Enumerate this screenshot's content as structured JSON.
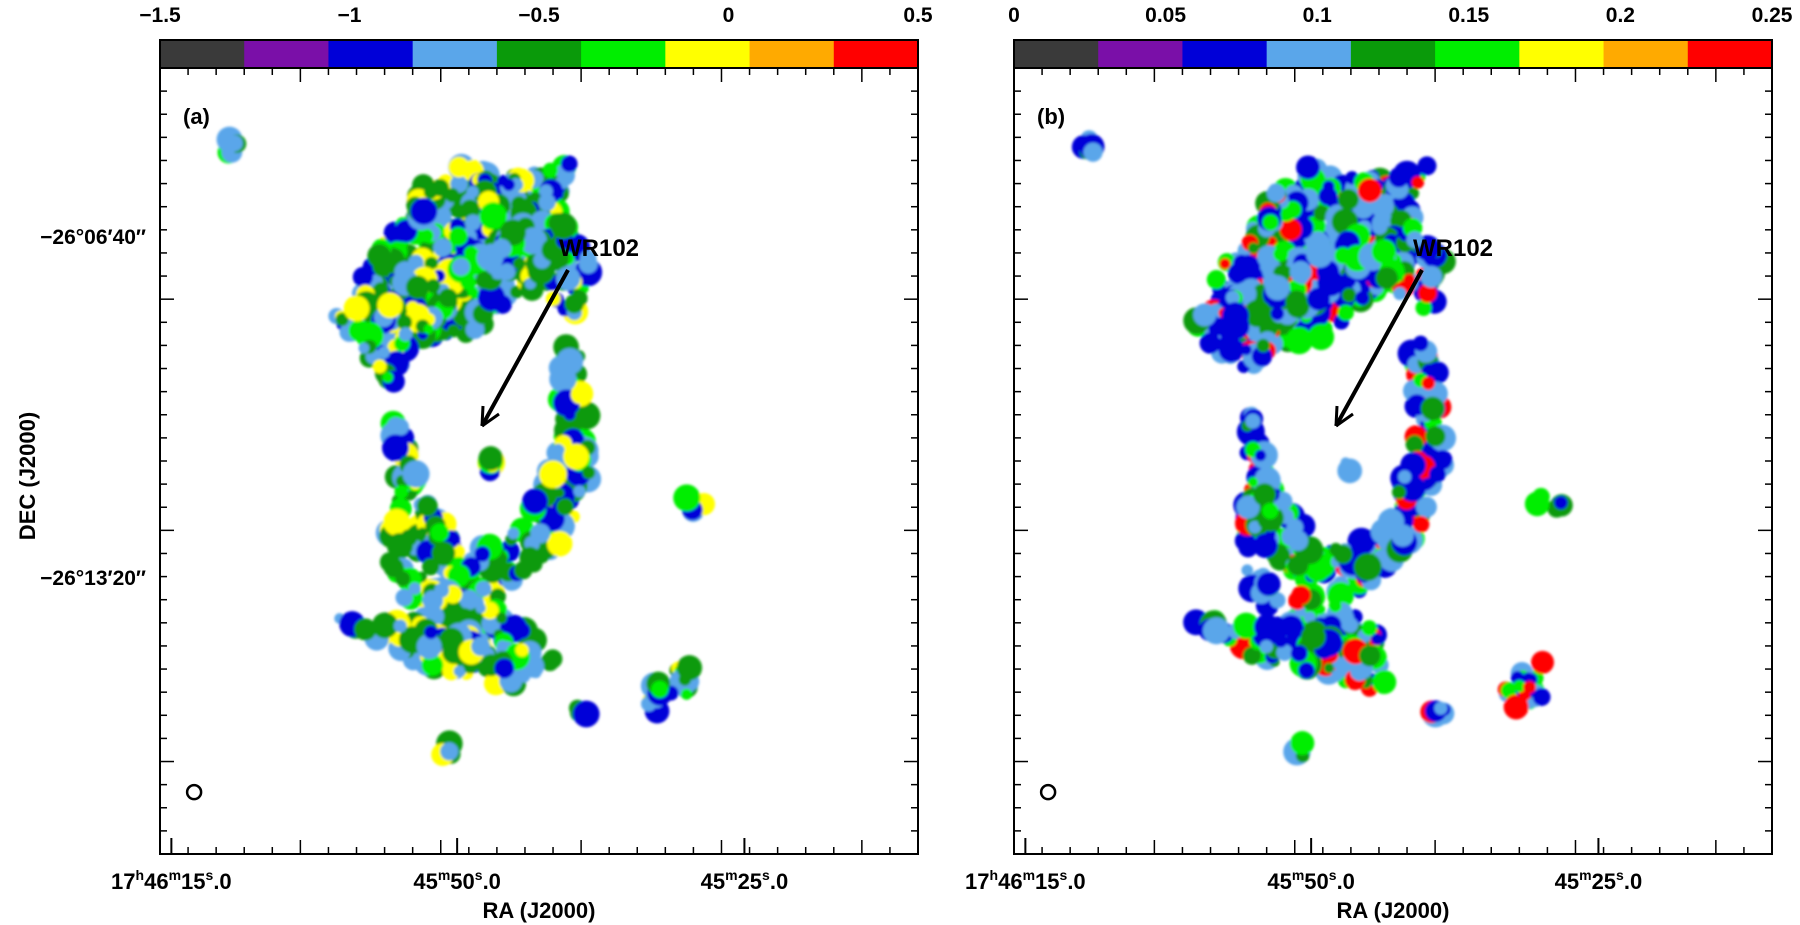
{
  "chart_data": [
    {
      "type": "heatmap",
      "panel_label": "(a)",
      "colorbar": {
        "range": [
          -1.5,
          0.5
        ],
        "tick_values": [
          -1.5,
          -1,
          -0.5,
          0,
          0.5
        ],
        "tick_labels": [
          "−1.5",
          "−1",
          "−0.5",
          "0",
          "0.5"
        ],
        "colors": [
          "#3a3a3a",
          "#7a0fa8",
          "#0000d8",
          "#5aa6ea",
          "#0a9a0a",
          "#00ee00",
          "#ffff00",
          "#ffaa00",
          "#ff0000"
        ]
      },
      "annotation": "WR102",
      "y_tick_labels": [
        "−26°06′40″",
        "−26°13′20″"
      ],
      "ylabel": "DEC (J2000)"
    },
    {
      "type": "heatmap",
      "panel_label": "(b)",
      "colorbar": {
        "range": [
          0,
          0.25
        ],
        "tick_values": [
          0,
          0.05,
          0.1,
          0.15,
          0.2,
          0.25
        ],
        "tick_labels": [
          "0",
          "0.05",
          "0.1",
          "0.15",
          "0.2",
          "0.25"
        ],
        "colors": [
          "#3a3a3a",
          "#7a0fa8",
          "#0000d8",
          "#5aa6ea",
          "#0a9a0a",
          "#00ee00",
          "#ffff00",
          "#ffaa00",
          "#ff0000"
        ]
      },
      "annotation": "WR102"
    }
  ],
  "x_axis": {
    "label": "RA (J2000)",
    "ticks": [
      {
        "h": "17",
        "hs": "h",
        "m": "46",
        "ms": "m",
        "s": "15",
        "ss": "s",
        "frac": ".0"
      },
      {
        "h": "",
        "hs": "",
        "m": "45",
        "ms": "m",
        "s": "50",
        "ss": "s",
        "frac": ".0"
      },
      {
        "h": "",
        "hs": "",
        "m": "45",
        "ms": "m",
        "s": "25",
        "ss": "s",
        "frac": ".0"
      }
    ]
  }
}
